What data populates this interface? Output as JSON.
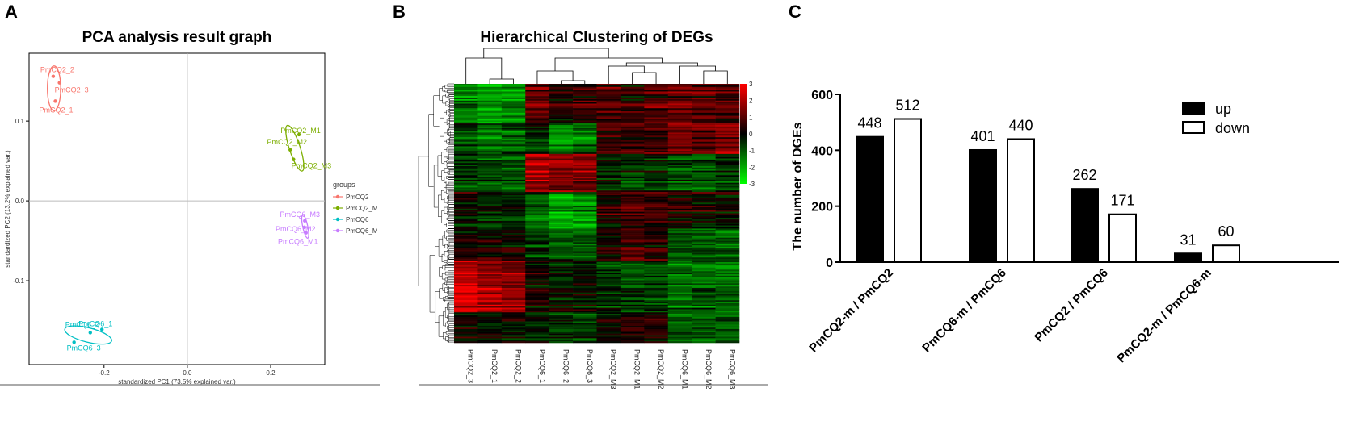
{
  "panels": {
    "a": "A",
    "b": "B",
    "c": "C"
  },
  "chart_data": [
    {
      "type": "scatter",
      "title": "PCA analysis result graph",
      "xlabel": "standardized PC1 (73.5% explained var.)",
      "ylabel": "standardized PC2 (13.2% explained var.)",
      "xlim": [
        -0.38,
        0.33
      ],
      "ylim": [
        -0.205,
        0.185
      ],
      "xticks": [
        {
          "v": -0.2,
          "label": "-0.2"
        },
        {
          "v": 0,
          "label": "0.0"
        },
        {
          "v": 0.2,
          "label": "0.2"
        }
      ],
      "yticks": [
        {
          "v": 0.1,
          "label": "0.1"
        },
        {
          "v": 0,
          "label": "0.0"
        },
        {
          "v": -0.1,
          "label": "-0.1"
        }
      ],
      "legend_title": "groups",
      "groups": [
        {
          "name": "PmCQ2",
          "color": "#f8766d",
          "points": [
            {
              "label": "PmCQ2_2",
              "x": -0.322,
              "y": 0.156
            },
            {
              "label": "PmCQ2_3",
              "x": -0.307,
              "y": 0.148
            },
            {
              "label": "PmCQ2_1",
              "x": -0.317,
              "y": 0.125
            }
          ],
          "ellipse": {
            "cx": -0.32,
            "cy": 0.141,
            "rx": 0.016,
            "ry": 0.028,
            "angle": 0
          }
        },
        {
          "name": "PmCQ2_M",
          "color": "#7cae00",
          "points": [
            {
              "label": "PmCQ2_M1",
              "x": 0.268,
              "y": 0.083
            },
            {
              "label": "PmCQ2_M2",
              "x": 0.247,
              "y": 0.064
            },
            {
              "label": "PmCQ2_M3",
              "x": 0.255,
              "y": 0.052
            }
          ],
          "ellipse": {
            "cx": 0.258,
            "cy": 0.066,
            "rx": 0.013,
            "ry": 0.03,
            "angle": 18
          }
        },
        {
          "name": "PmCQ6",
          "color": "#00bfc4",
          "points": [
            {
              "label": "PmCQ6_2",
              "x": -0.233,
              "y": -0.165
            },
            {
              "label": "PmCQ6_1",
              "x": -0.205,
              "y": -0.161
            },
            {
              "label": "PmCQ6_3",
              "x": -0.272,
              "y": -0.177
            }
          ],
          "ellipse": {
            "cx": -0.238,
            "cy": -0.168,
            "rx": 0.058,
            "ry": 0.009,
            "angle": -14
          }
        },
        {
          "name": "PmCQ6_M",
          "color": "#c77cff",
          "points": [
            {
              "label": "PmCQ6_M3",
              "x": 0.282,
              "y": -0.025
            },
            {
              "label": "PmCQ6_M2",
              "x": 0.281,
              "y": -0.033
            },
            {
              "label": "PmCQ6_M1",
              "x": 0.285,
              "y": -0.04
            }
          ],
          "ellipse": {
            "cx": 0.283,
            "cy": -0.032,
            "rx": 0.006,
            "ry": 0.015,
            "angle": 12
          }
        }
      ]
    },
    {
      "type": "heatmap",
      "title": "Hierarchical Clustering of DEGs",
      "columns": [
        "PmCQ2_3",
        "PmCQ2_1",
        "PmCQ2_2",
        "PmCQ6_1",
        "PmCQ6_2",
        "PmCQ6_3",
        "PmCQ2_M3",
        "PmCQ2_M1",
        "PmCQ2_M2",
        "PmCQ6_M1",
        "PmCQ6_M2",
        "PmCQ6_M3"
      ],
      "colorbar": {
        "ticks": [
          {
            "v": 3,
            "label": "3"
          },
          {
            "v": 2,
            "label": "2"
          },
          {
            "v": 1,
            "label": "1"
          },
          {
            "v": 0,
            "label": "0"
          },
          {
            "v": -1,
            "label": "-1"
          },
          {
            "v": -2,
            "label": "-2"
          },
          {
            "v": -3,
            "label": "-3"
          }
        ],
        "min": -3,
        "max": 3
      },
      "rows": 170,
      "block_pattern": [
        {
          "until": 0.15,
          "values": [
            -1.4,
            -1.8,
            -1.6,
            1.2,
            0.4,
            0.6,
            0.8,
            0.4,
            0.9,
            1.1,
            1.0,
            0.9
          ]
        },
        {
          "until": 0.27,
          "values": [
            -0.8,
            -1.2,
            -1.0,
            -0.4,
            -1.6,
            -1.3,
            0.9,
            0.8,
            0.7,
            1.4,
            1.3,
            1.5
          ]
        },
        {
          "until": 0.42,
          "values": [
            -0.7,
            -0.9,
            -1.0,
            2.1,
            1.6,
            1.5,
            -0.3,
            -0.5,
            -0.4,
            -0.8,
            -0.9,
            -0.5
          ]
        },
        {
          "until": 0.56,
          "values": [
            0.1,
            -0.3,
            -0.2,
            -1.0,
            -1.8,
            -1.5,
            0.6,
            1.0,
            0.8,
            0.5,
            0.3,
            0.2
          ]
        },
        {
          "until": 0.68,
          "values": [
            0.2,
            0.4,
            0.3,
            -0.5,
            -0.9,
            -0.8,
            0.4,
            0.9,
            0.5,
            -0.8,
            -0.9,
            -1.1
          ]
        },
        {
          "until": 0.88,
          "values": [
            2.4,
            1.8,
            1.6,
            0.1,
            -0.2,
            -0.1,
            -0.5,
            -0.9,
            -0.8,
            -1.3,
            -1.1,
            -1.2
          ]
        },
        {
          "until": 1.0,
          "values": [
            0.3,
            0.0,
            0.1,
            -0.2,
            -0.5,
            -0.5,
            0.3,
            0.5,
            0.4,
            -0.9,
            -1.0,
            -1.0
          ]
        }
      ]
    },
    {
      "type": "bar",
      "ylabel": "The number of DGEs",
      "ylim": [
        0,
        600
      ],
      "yticks": [
        0,
        200,
        400,
        600
      ],
      "categories": [
        "PmCQ2-m / PmCQ2",
        "PmCQ6-m / PmCQ6",
        "PmCQ2 / PmCQ6",
        "PmCQ2-m / PmCQ6-m"
      ],
      "series": [
        {
          "name": "up",
          "color": "#000000",
          "values": [
            448,
            401,
            262,
            31
          ]
        },
        {
          "name": "down",
          "color": "#ffffff",
          "values": [
            512,
            440,
            171,
            60
          ]
        }
      ]
    }
  ]
}
